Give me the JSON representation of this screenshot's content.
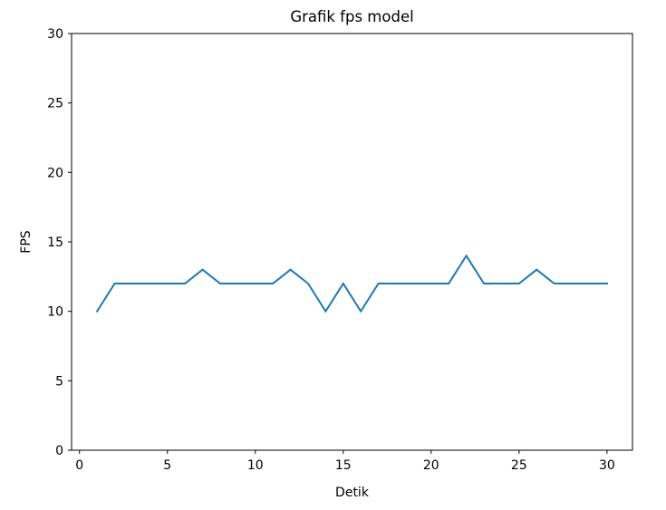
{
  "chart_data": {
    "type": "line",
    "title": "Grafik fps model",
    "xlabel": "Detik",
    "ylabel": "FPS",
    "xlim": [
      -0.45,
      31.45
    ],
    "ylim": [
      0,
      30
    ],
    "xticks": [
      0,
      5,
      10,
      15,
      20,
      25,
      30
    ],
    "yticks": [
      0,
      5,
      10,
      15,
      20,
      25,
      30
    ],
    "grid": false,
    "colors": {
      "line": "#1f77b4",
      "axes": "#000000",
      "background": "#ffffff"
    },
    "series": [
      {
        "x": [
          1,
          2,
          3,
          4,
          5,
          6,
          7,
          8,
          9,
          10,
          11,
          12,
          13,
          14,
          15,
          16,
          17,
          18,
          19,
          20,
          21,
          22,
          23,
          24,
          25,
          26,
          27,
          28,
          29,
          30
        ],
        "values": [
          10,
          12,
          12,
          12,
          12,
          12,
          13,
          12,
          12,
          12,
          12,
          13,
          12,
          10,
          12,
          10,
          12,
          12,
          12,
          12,
          12,
          14,
          12,
          12,
          12,
          13,
          12,
          12,
          12,
          12
        ]
      }
    ]
  }
}
